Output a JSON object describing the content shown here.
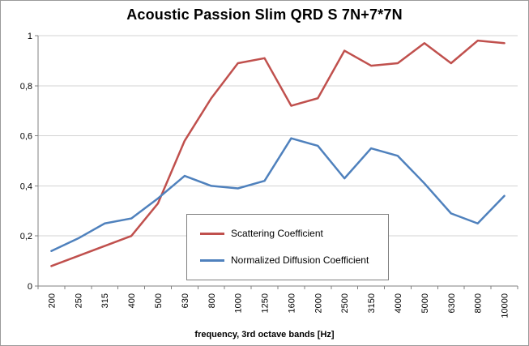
{
  "chart_data": {
    "type": "line",
    "title": "Acoustic Passion Slim QRD S 7N+7*7N",
    "xlabel": "frequency, 3rd octave bands [Hz]",
    "ylabel": "",
    "categories": [
      "200",
      "250",
      "315",
      "400",
      "500",
      "630",
      "800",
      "1000",
      "1250",
      "1600",
      "2000",
      "2500",
      "3150",
      "4000",
      "5000",
      "6300",
      "8000",
      "10000"
    ],
    "series": [
      {
        "name": "Scattering Coefficient",
        "color": "#C0504D",
        "values": [
          0.08,
          0.12,
          0.16,
          0.2,
          0.33,
          0.58,
          0.75,
          0.89,
          0.91,
          0.72,
          0.75,
          0.94,
          0.88,
          0.89,
          0.97,
          0.89,
          0.98,
          0.97
        ]
      },
      {
        "name": "Normalized Diffusion Coefficient",
        "color": "#4F81BD",
        "values": [
          0.14,
          0.19,
          0.25,
          0.27,
          0.35,
          0.44,
          0.4,
          0.39,
          0.42,
          0.59,
          0.56,
          0.43,
          0.55,
          0.52,
          0.41,
          0.29,
          0.25,
          0.36
        ]
      }
    ],
    "ylim": [
      0,
      1
    ],
    "ytick_labels": [
      "0",
      "0,2",
      "0,4",
      "0,6",
      "0,8",
      "1"
    ],
    "grid": true,
    "legend_position": "inside-center-left"
  },
  "colors": {
    "grid": "#D3D3D3",
    "axis": "#808080",
    "frame_border": "#9A9A9A",
    "tick_label": "#000000"
  }
}
